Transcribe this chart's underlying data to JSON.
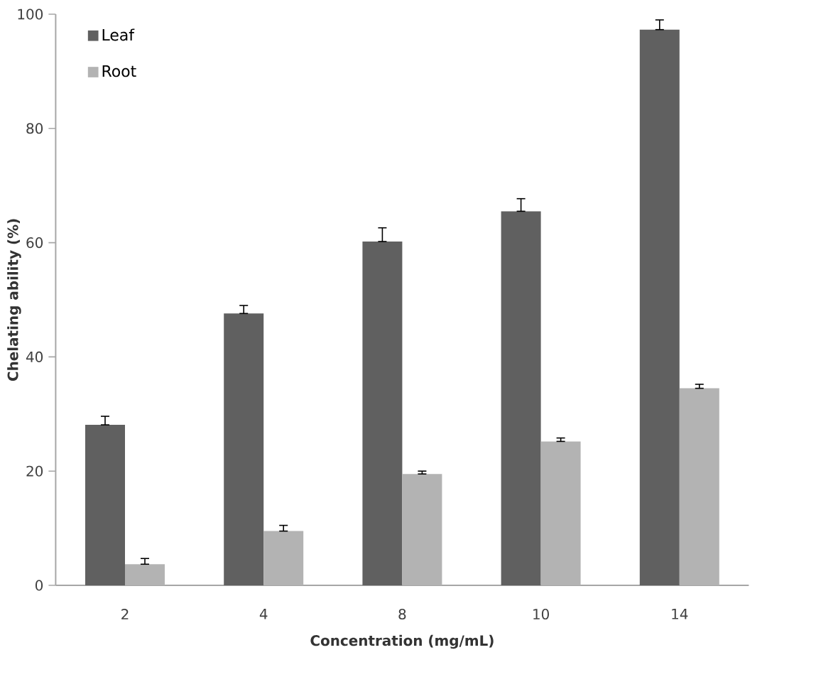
{
  "chart_data": {
    "type": "bar",
    "xlabel": "Concentration  (mg/mL)",
    "ylabel": "Chelating ability (%)",
    "categories": [
      "2",
      "4",
      "8",
      "10",
      "14"
    ],
    "series": [
      {
        "name": "Leaf",
        "color": "#606060",
        "values": [
          28.1,
          47.6,
          60.2,
          65.5,
          97.3
        ],
        "errors": [
          [
            28.1,
            29.6
          ],
          [
            47.6,
            49.0
          ],
          [
            60.2,
            62.6
          ],
          [
            65.5,
            67.7
          ],
          [
            97.3,
            99.0
          ]
        ]
      },
      {
        "name": "Root",
        "color": "#b3b3b3",
        "values": [
          3.7,
          9.5,
          19.5,
          25.2,
          34.5
        ],
        "errors": [
          [
            3.7,
            4.7
          ],
          [
            9.5,
            10.5
          ],
          [
            19.5,
            20.0
          ],
          [
            25.2,
            25.8
          ],
          [
            34.5,
            35.2
          ]
        ]
      }
    ],
    "ylim": [
      0,
      100
    ],
    "yticks": [
      0,
      20,
      40,
      60,
      80,
      100
    ],
    "grid": false,
    "legend": "top left"
  }
}
